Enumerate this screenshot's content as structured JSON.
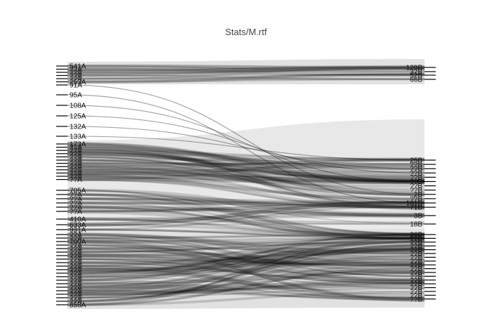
{
  "chart_data": {
    "type": "sankey",
    "title": "Stats/M.rtf",
    "colors": {
      "band": "#000000",
      "node_bg": "#bdbdbd",
      "tick": "#000000",
      "text": "#111111"
    },
    "left_nodes": [
      {
        "name": "541A"
      },
      {
        "name": "??A"
      },
      {
        "name": "??A"
      },
      {
        "name": "??A"
      },
      {
        "name": "??A"
      },
      {
        "name": "253A"
      },
      {
        "name": "91A"
      },
      {
        "name": "95A"
      },
      {
        "name": "108A"
      },
      {
        "name": "125A"
      },
      {
        "name": "132A"
      },
      {
        "name": "133A"
      },
      {
        "name": "173A"
      },
      {
        "name": "??A"
      },
      {
        "name": "??A"
      },
      {
        "name": "??A"
      },
      {
        "name": "??A"
      },
      {
        "name": "??A"
      },
      {
        "name": "??A"
      },
      {
        "name": "??A"
      },
      {
        "name": "??A"
      },
      {
        "name": "??A"
      },
      {
        "name": "??A"
      },
      {
        "name": "??A"
      },
      {
        "name": "705A"
      },
      {
        "name": "??A"
      },
      {
        "name": "??A"
      },
      {
        "name": "??A"
      },
      {
        "name": "??A"
      },
      {
        "name": "??A"
      },
      {
        "name": "410A"
      },
      {
        "name": "633A"
      },
      {
        "name": "931A"
      },
      {
        "name": "??A"
      },
      {
        "name": "??A"
      },
      {
        "name": "700A"
      },
      {
        "name": "??A"
      },
      {
        "name": "??A"
      },
      {
        "name": "??A"
      },
      {
        "name": "??A"
      },
      {
        "name": "??A"
      },
      {
        "name": "??A"
      },
      {
        "name": "??A"
      },
      {
        "name": "??A"
      },
      {
        "name": "??A"
      },
      {
        "name": "??A"
      },
      {
        "name": "??A"
      },
      {
        "name": "??A"
      },
      {
        "name": "??A"
      },
      {
        "name": "??A"
      },
      {
        "name": "??A"
      },
      {
        "name": "??A"
      },
      {
        "name": "??A"
      },
      {
        "name": "858A"
      }
    ],
    "right_nodes": [
      {
        "name": "129B"
      },
      {
        "name": "32B"
      },
      {
        "name": "52B"
      },
      {
        "name": "66B"
      },
      {
        "name": "25B"
      },
      {
        "name": "??B"
      },
      {
        "name": "??B"
      },
      {
        "name": "??B"
      },
      {
        "name": "??B"
      },
      {
        "name": "??B"
      },
      {
        "name": "??B"
      },
      {
        "name": "??B"
      },
      {
        "name": "2B"
      },
      {
        "name": "??B"
      },
      {
        "name": "101B"
      },
      {
        "name": "71B"
      },
      {
        "name": "3B"
      },
      {
        "name": "18B"
      },
      {
        "name": "26B"
      },
      {
        "name": "??B"
      },
      {
        "name": "??B"
      },
      {
        "name": "??B"
      },
      {
        "name": "??B"
      },
      {
        "name": "??B"
      },
      {
        "name": "??B"
      },
      {
        "name": "??B"
      },
      {
        "name": "??B"
      },
      {
        "name": "??B"
      },
      {
        "name": "??B"
      },
      {
        "name": "??B"
      },
      {
        "name": "??B"
      },
      {
        "name": "??B"
      },
      {
        "name": "??B"
      },
      {
        "name": "??B"
      },
      {
        "name": "??B"
      },
      {
        "name": "??B"
      }
    ],
    "crossing_flows": [
      {
        "source": "91A",
        "target": "2B"
      },
      {
        "source": "95A",
        "target": "101B"
      },
      {
        "source": "108A",
        "target": "??B"
      },
      {
        "source": "125A",
        "target": "??B"
      },
      {
        "source": "132A",
        "target": "??B"
      },
      {
        "source": "133A",
        "target": "25B"
      }
    ]
  }
}
